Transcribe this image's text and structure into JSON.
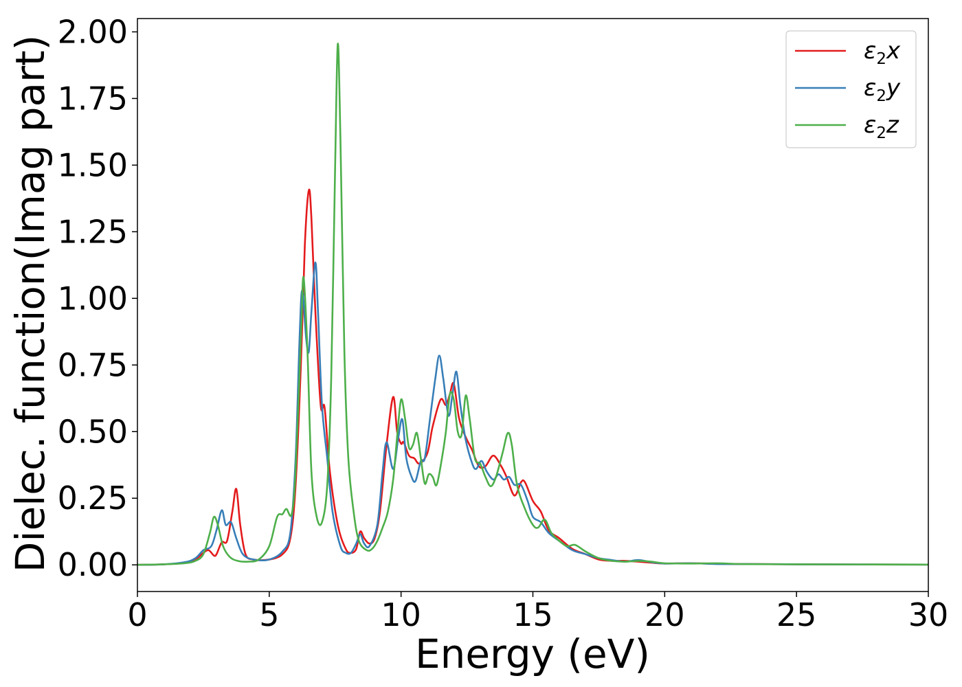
{
  "chart_data": {
    "type": "line",
    "title": "",
    "xlabel": "Energy (eV)",
    "ylabel": "Dielec. function(Imag part)",
    "xlim": [
      0,
      30
    ],
    "ylim": [
      -0.1,
      2.05
    ],
    "x_ticks": [
      0,
      5,
      10,
      15,
      20,
      25,
      30
    ],
    "x_tick_labels": [
      "0",
      "5",
      "10",
      "15",
      "20",
      "25",
      "30"
    ],
    "y_ticks": [
      0.0,
      0.25,
      0.5,
      0.75,
      1.0,
      1.25,
      1.5,
      1.75,
      2.0
    ],
    "y_tick_labels": [
      "0.00",
      "0.25",
      "0.50",
      "0.75",
      "1.00",
      "1.25",
      "1.50",
      "1.75",
      "2.00"
    ],
    "grid": false,
    "legend_position": "top-right",
    "series": [
      {
        "name": "ε₂x",
        "legend_base": "ε",
        "legend_sub": "2",
        "legend_suffix": "x",
        "color": "#e41a1c",
        "points": [
          [
            0,
            0
          ],
          [
            1,
            0.002
          ],
          [
            1.8,
            0.008
          ],
          [
            2.2,
            0.02
          ],
          [
            2.5,
            0.045
          ],
          [
            2.7,
            0.055
          ],
          [
            2.9,
            0.035
          ],
          [
            3.0,
            0.04
          ],
          [
            3.2,
            0.085
          ],
          [
            3.4,
            0.09
          ],
          [
            3.6,
            0.2
          ],
          [
            3.75,
            0.285
          ],
          [
            3.9,
            0.15
          ],
          [
            4.1,
            0.04
          ],
          [
            4.4,
            0.02
          ],
          [
            5.0,
            0.02
          ],
          [
            5.5,
            0.04
          ],
          [
            5.8,
            0.1
          ],
          [
            6.0,
            0.3
          ],
          [
            6.2,
            0.75
          ],
          [
            6.35,
            1.2
          ],
          [
            6.5,
            1.405
          ],
          [
            6.6,
            1.3
          ],
          [
            6.75,
            0.95
          ],
          [
            6.95,
            0.6
          ],
          [
            7.1,
            0.59
          ],
          [
            7.3,
            0.35
          ],
          [
            7.6,
            0.15
          ],
          [
            7.9,
            0.06
          ],
          [
            8.1,
            0.045
          ],
          [
            8.3,
            0.06
          ],
          [
            8.45,
            0.125
          ],
          [
            8.6,
            0.1
          ],
          [
            8.8,
            0.08
          ],
          [
            9.0,
            0.1
          ],
          [
            9.2,
            0.2
          ],
          [
            9.45,
            0.45
          ],
          [
            9.7,
            0.63
          ],
          [
            9.85,
            0.5
          ],
          [
            10.0,
            0.455
          ],
          [
            10.1,
            0.46
          ],
          [
            10.3,
            0.41
          ],
          [
            10.5,
            0.4
          ],
          [
            10.7,
            0.38
          ],
          [
            11.0,
            0.42
          ],
          [
            11.2,
            0.52
          ],
          [
            11.5,
            0.62
          ],
          [
            11.7,
            0.6
          ],
          [
            11.85,
            0.64
          ],
          [
            12.0,
            0.68
          ],
          [
            12.2,
            0.55
          ],
          [
            12.45,
            0.48
          ],
          [
            12.7,
            0.43
          ],
          [
            12.95,
            0.37
          ],
          [
            13.2,
            0.37
          ],
          [
            13.5,
            0.41
          ],
          [
            13.8,
            0.37
          ],
          [
            14.0,
            0.33
          ],
          [
            14.3,
            0.26
          ],
          [
            14.55,
            0.31
          ],
          [
            14.7,
            0.31
          ],
          [
            15.0,
            0.24
          ],
          [
            15.3,
            0.2
          ],
          [
            15.6,
            0.13
          ],
          [
            16.0,
            0.1
          ],
          [
            16.5,
            0.06
          ],
          [
            17.0,
            0.04
          ],
          [
            17.5,
            0.02
          ],
          [
            18.0,
            0.015
          ],
          [
            18.5,
            0.015
          ],
          [
            19.0,
            0.012
          ],
          [
            19.5,
            0.008
          ],
          [
            20,
            0.005
          ],
          [
            21,
            0.006
          ],
          [
            22,
            0.004
          ],
          [
            23,
            0.003
          ],
          [
            25,
            0.002
          ],
          [
            30,
            0.001
          ]
        ]
      },
      {
        "name": "ε₂y",
        "legend_base": "ε",
        "legend_sub": "2",
        "legend_suffix": "y",
        "color": "#377eb8",
        "points": [
          [
            0,
            0
          ],
          [
            1,
            0.002
          ],
          [
            1.8,
            0.01
          ],
          [
            2.2,
            0.025
          ],
          [
            2.5,
            0.055
          ],
          [
            2.8,
            0.07
          ],
          [
            3.0,
            0.13
          ],
          [
            3.2,
            0.205
          ],
          [
            3.35,
            0.15
          ],
          [
            3.55,
            0.16
          ],
          [
            3.75,
            0.1
          ],
          [
            4.0,
            0.04
          ],
          [
            4.4,
            0.02
          ],
          [
            5.0,
            0.02
          ],
          [
            5.5,
            0.05
          ],
          [
            5.8,
            0.12
          ],
          [
            6.0,
            0.4
          ],
          [
            6.15,
            0.85
          ],
          [
            6.25,
            1.03
          ],
          [
            6.4,
            0.85
          ],
          [
            6.5,
            0.8
          ],
          [
            6.6,
            0.95
          ],
          [
            6.75,
            1.135
          ],
          [
            6.85,
            0.95
          ],
          [
            7.0,
            0.6
          ],
          [
            7.2,
            0.4
          ],
          [
            7.4,
            0.2
          ],
          [
            7.7,
            0.07
          ],
          [
            7.9,
            0.045
          ],
          [
            8.1,
            0.045
          ],
          [
            8.3,
            0.08
          ],
          [
            8.45,
            0.115
          ],
          [
            8.6,
            0.08
          ],
          [
            8.8,
            0.07
          ],
          [
            9.1,
            0.15
          ],
          [
            9.3,
            0.35
          ],
          [
            9.45,
            0.46
          ],
          [
            9.7,
            0.36
          ],
          [
            9.9,
            0.48
          ],
          [
            10.05,
            0.545
          ],
          [
            10.2,
            0.4
          ],
          [
            10.4,
            0.33
          ],
          [
            10.55,
            0.315
          ],
          [
            10.75,
            0.39
          ],
          [
            10.9,
            0.4
          ],
          [
            11.1,
            0.55
          ],
          [
            11.3,
            0.7
          ],
          [
            11.45,
            0.785
          ],
          [
            11.6,
            0.7
          ],
          [
            11.8,
            0.56
          ],
          [
            11.95,
            0.64
          ],
          [
            12.1,
            0.725
          ],
          [
            12.25,
            0.6
          ],
          [
            12.45,
            0.47
          ],
          [
            12.7,
            0.38
          ],
          [
            12.85,
            0.36
          ],
          [
            13.05,
            0.39
          ],
          [
            13.25,
            0.35
          ],
          [
            13.5,
            0.32
          ],
          [
            13.7,
            0.34
          ],
          [
            13.9,
            0.32
          ],
          [
            14.1,
            0.33
          ],
          [
            14.3,
            0.3
          ],
          [
            14.55,
            0.3
          ],
          [
            14.8,
            0.24
          ],
          [
            15.0,
            0.18
          ],
          [
            15.3,
            0.16
          ],
          [
            15.6,
            0.12
          ],
          [
            16.0,
            0.09
          ],
          [
            16.5,
            0.055
          ],
          [
            17.0,
            0.04
          ],
          [
            17.5,
            0.025
          ],
          [
            18.0,
            0.018
          ],
          [
            18.5,
            0.012
          ],
          [
            19.0,
            0.018
          ],
          [
            19.5,
            0.01
          ],
          [
            20,
            0.005
          ],
          [
            21,
            0.006
          ],
          [
            22,
            0.003
          ],
          [
            23,
            0.003
          ],
          [
            25,
            0.002
          ],
          [
            30,
            0.001
          ]
        ]
      },
      {
        "name": "ε₂z",
        "legend_base": "ε",
        "legend_sub": "2",
        "legend_suffix": "z",
        "color": "#4daf4a",
        "points": [
          [
            0,
            0
          ],
          [
            1,
            0.002
          ],
          [
            1.8,
            0.006
          ],
          [
            2.2,
            0.015
          ],
          [
            2.5,
            0.04
          ],
          [
            2.75,
            0.12
          ],
          [
            2.9,
            0.18
          ],
          [
            3.05,
            0.15
          ],
          [
            3.25,
            0.07
          ],
          [
            3.5,
            0.03
          ],
          [
            3.8,
            0.015
          ],
          [
            4.2,
            0.012
          ],
          [
            4.6,
            0.02
          ],
          [
            5.0,
            0.07
          ],
          [
            5.3,
            0.18
          ],
          [
            5.5,
            0.19
          ],
          [
            5.65,
            0.21
          ],
          [
            5.85,
            0.19
          ],
          [
            6.0,
            0.35
          ],
          [
            6.2,
            0.85
          ],
          [
            6.3,
            1.08
          ],
          [
            6.45,
            0.8
          ],
          [
            6.6,
            0.35
          ],
          [
            6.8,
            0.18
          ],
          [
            7.0,
            0.16
          ],
          [
            7.2,
            0.3
          ],
          [
            7.35,
            0.7
          ],
          [
            7.5,
            1.5
          ],
          [
            7.6,
            1.955
          ],
          [
            7.7,
            1.6
          ],
          [
            7.85,
            0.8
          ],
          [
            8.0,
            0.4
          ],
          [
            8.2,
            0.2
          ],
          [
            8.4,
            0.09
          ],
          [
            8.7,
            0.055
          ],
          [
            8.9,
            0.06
          ],
          [
            9.1,
            0.09
          ],
          [
            9.3,
            0.14
          ],
          [
            9.5,
            0.2
          ],
          [
            9.7,
            0.32
          ],
          [
            9.85,
            0.48
          ],
          [
            10.0,
            0.62
          ],
          [
            10.15,
            0.55
          ],
          [
            10.3,
            0.44
          ],
          [
            10.45,
            0.45
          ],
          [
            10.6,
            0.495
          ],
          [
            10.75,
            0.4
          ],
          [
            10.9,
            0.305
          ],
          [
            11.05,
            0.34
          ],
          [
            11.2,
            0.33
          ],
          [
            11.35,
            0.3
          ],
          [
            11.55,
            0.4
          ],
          [
            11.7,
            0.5
          ],
          [
            11.85,
            0.64
          ],
          [
            12.0,
            0.62
          ],
          [
            12.15,
            0.5
          ],
          [
            12.3,
            0.49
          ],
          [
            12.45,
            0.635
          ],
          [
            12.6,
            0.55
          ],
          [
            12.8,
            0.4
          ],
          [
            13.0,
            0.38
          ],
          [
            13.2,
            0.33
          ],
          [
            13.4,
            0.295
          ],
          [
            13.6,
            0.33
          ],
          [
            13.85,
            0.42
          ],
          [
            14.05,
            0.495
          ],
          [
            14.2,
            0.45
          ],
          [
            14.4,
            0.3
          ],
          [
            14.7,
            0.21
          ],
          [
            15.0,
            0.15
          ],
          [
            15.2,
            0.14
          ],
          [
            15.45,
            0.17
          ],
          [
            15.7,
            0.12
          ],
          [
            16.0,
            0.09
          ],
          [
            16.3,
            0.07
          ],
          [
            16.6,
            0.075
          ],
          [
            17.0,
            0.05
          ],
          [
            17.5,
            0.025
          ],
          [
            18.0,
            0.015
          ],
          [
            18.5,
            0.012
          ],
          [
            19.0,
            0.015
          ],
          [
            19.5,
            0.012
          ],
          [
            20,
            0.006
          ],
          [
            21,
            0.005
          ],
          [
            22,
            0.006
          ],
          [
            23,
            0.003
          ],
          [
            25,
            0.002
          ],
          [
            30,
            0.001
          ]
        ]
      }
    ]
  }
}
